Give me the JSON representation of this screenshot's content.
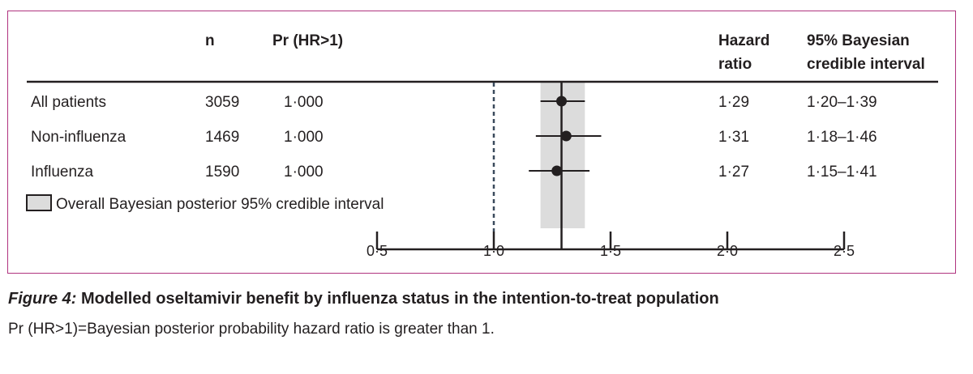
{
  "headers": {
    "n": "n",
    "pr": "Pr (HR>1)",
    "hr_line1": "Hazard",
    "hr_line2": "ratio",
    "ci_line1": "95% Bayesian",
    "ci_line2": "credible interval"
  },
  "legend_label": "Overall Bayesian posterior 95% credible interval",
  "caption": {
    "figure_label": "Figure 4:",
    "title": "Modelled oseltamivir benefit by influenza status in the intention-to-treat population",
    "note": "Pr (HR>1)=Bayesian posterior probability hazard ratio is greater than 1."
  },
  "colors": {
    "frame": "#b0337f",
    "band": "#dcdcdc",
    "ink": "#231f20",
    "reference_line": "#3a4a5c"
  },
  "chart_data": {
    "type": "forest",
    "x_ticks": [
      0.5,
      1.0,
      1.5,
      2.0,
      2.5
    ],
    "x_tick_labels": [
      "0·5",
      "1·0",
      "1·5",
      "2·0",
      "2·5"
    ],
    "xlim": [
      0.5,
      2.5
    ],
    "reference_value": 1.0,
    "overall": {
      "estimate": 1.29,
      "lower": 1.2,
      "upper": 1.39
    },
    "rows": [
      {
        "label": "All patients",
        "n": "3059",
        "pr": "1·000",
        "hr": "1·29",
        "ci": "1·20–1·39",
        "estimate": 1.29,
        "lower": 1.2,
        "upper": 1.39
      },
      {
        "label": "Non-influenza",
        "n": "1469",
        "pr": "1·000",
        "hr": "1·31",
        "ci": "1·18–1·46",
        "estimate": 1.31,
        "lower": 1.18,
        "upper": 1.46
      },
      {
        "label": "Influenza",
        "n": "1590",
        "pr": "1·000",
        "hr": "1·27",
        "ci": "1·15–1·41",
        "estimate": 1.27,
        "lower": 1.15,
        "upper": 1.41
      }
    ]
  }
}
